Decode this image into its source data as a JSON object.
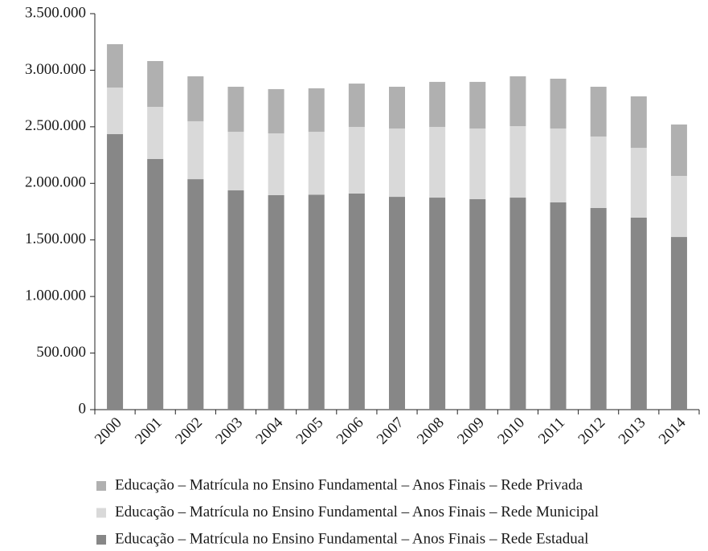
{
  "chart_data": {
    "type": "stacked-bar",
    "categories": [
      "2000",
      "2001",
      "2002",
      "2003",
      "2004",
      "2005",
      "2006",
      "2007",
      "2008",
      "2009",
      "2010",
      "2011",
      "2012",
      "2013",
      "2014"
    ],
    "series": [
      {
        "name": "Educação – Matrícula no Ensino Fundamental – Anos Finais – Rede Estadual",
        "color": "#878787",
        "values": [
          2435000,
          2215000,
          2037000,
          1938000,
          1896000,
          1900000,
          1910000,
          1881000,
          1874000,
          1860000,
          1874000,
          1832000,
          1782000,
          1697000,
          1526000
        ]
      },
      {
        "name": "Educação – Matrícula no Ensino Fundamental – Anos Finais – Rede Municipal",
        "color": "#d9d9d9",
        "values": [
          412000,
          461000,
          512000,
          518000,
          546000,
          556000,
          589000,
          604000,
          625000,
          625000,
          632000,
          653000,
          632000,
          617000,
          540000
        ]
      },
      {
        "name": "Educação – Matrícula no Ensino Fundamental – Anos Finais – Rede Privada",
        "color": "#b0b0b0",
        "values": [
          383000,
          405000,
          397000,
          398000,
          391000,
          384000,
          383000,
          369000,
          398000,
          412000,
          440000,
          440000,
          440000,
          455000,
          454000
        ]
      }
    ],
    "ylim": [
      0,
      3500000
    ],
    "yticks": [
      0,
      {
        "value": 500000,
        "label": "500.000"
      },
      {
        "value": 1000000,
        "label": "1.000.000"
      },
      {
        "value": 1500000,
        "label": "1.500.000"
      },
      {
        "value": 2000000,
        "label": "2.000.000"
      },
      {
        "value": 2500000,
        "label": "2.500.000"
      },
      {
        "value": 3000000,
        "label": "3.000.000"
      },
      {
        "value": 3500000,
        "label": "3.500.000"
      }
    ]
  }
}
